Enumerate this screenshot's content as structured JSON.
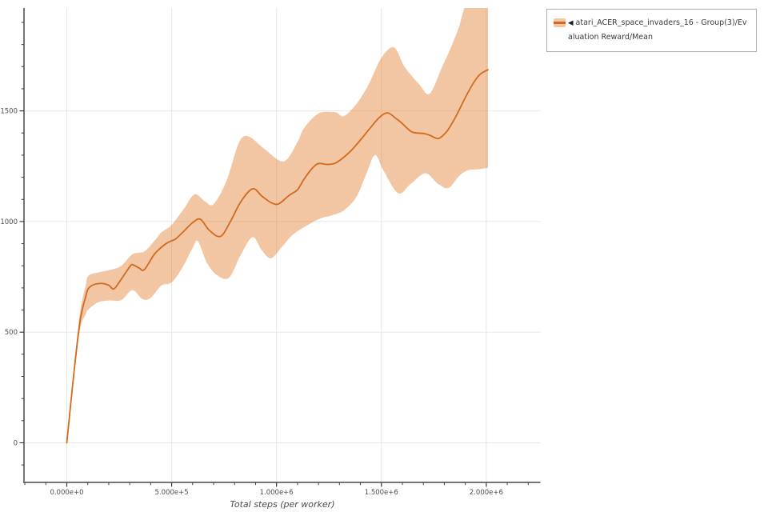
{
  "legend": {
    "collapse_icon": "◀",
    "series_label": "atari_ACER_space_invaders_16 - Group(3)/Evaluation Reward/Mean"
  },
  "chart_data": {
    "type": "line",
    "title": "",
    "xlabel": "Total steps (per worker)",
    "ylabel": "",
    "xlim": [
      -204000,
      2258000
    ],
    "ylim": [
      -179,
      1965
    ],
    "grid": true,
    "legend_position": "top-right",
    "x_ticks": [
      {
        "value": 0,
        "label": "0.000e+0"
      },
      {
        "value": 500000,
        "label": "5.000e+5"
      },
      {
        "value": 1000000,
        "label": "1.000e+6"
      },
      {
        "value": 1500000,
        "label": "1.500e+6"
      },
      {
        "value": 2000000,
        "label": "2.000e+6"
      }
    ],
    "y_ticks": [
      {
        "value": 0,
        "label": "0"
      },
      {
        "value": 500,
        "label": "500"
      },
      {
        "value": 1000,
        "label": "1000"
      },
      {
        "value": 1500,
        "label": "1500"
      }
    ],
    "x_minor_step": 100000,
    "y_minor_step": 100,
    "colors": {
      "line": "#d4691c",
      "band": "rgba(224,118,34,0.42)",
      "grid": "#e7e7e7",
      "spine": "#767676",
      "tick": "#3c3c3c",
      "tick_label": "#4d4d4d",
      "axis_title": "#4a4a4a"
    },
    "series": [
      {
        "name": "atari_ACER_space_invaders_16 - Group(3)/Evaluation Reward/Mean",
        "mean": [
          [
            0,
            0
          ],
          [
            15000,
            140
          ],
          [
            40000,
            370
          ],
          [
            65000,
            560
          ],
          [
            90000,
            660
          ],
          [
            103000,
            697
          ],
          [
            130000,
            715
          ],
          [
            170000,
            720
          ],
          [
            200000,
            712
          ],
          [
            225000,
            696
          ],
          [
            260000,
            740
          ],
          [
            300000,
            795
          ],
          [
            313000,
            805
          ],
          [
            345000,
            790
          ],
          [
            370000,
            783
          ],
          [
            420000,
            855
          ],
          [
            470000,
            898
          ],
          [
            505000,
            915
          ],
          [
            520000,
            922
          ],
          [
            560000,
            958
          ],
          [
            600000,
            995
          ],
          [
            637000,
            1010
          ],
          [
            680000,
            960
          ],
          [
            733000,
            933
          ],
          [
            780000,
            1000
          ],
          [
            830000,
            1090
          ],
          [
            886000,
            1148
          ],
          [
            930000,
            1115
          ],
          [
            975000,
            1085
          ],
          [
            1010000,
            1080
          ],
          [
            1060000,
            1118
          ],
          [
            1100000,
            1144
          ],
          [
            1130000,
            1190
          ],
          [
            1170000,
            1240
          ],
          [
            1200000,
            1262
          ],
          [
            1240000,
            1258
          ],
          [
            1280000,
            1264
          ],
          [
            1320000,
            1290
          ],
          [
            1360000,
            1325
          ],
          [
            1410000,
            1380
          ],
          [
            1440000,
            1415
          ],
          [
            1490000,
            1470
          ],
          [
            1530000,
            1491
          ],
          [
            1570000,
            1465
          ],
          [
            1590000,
            1451
          ],
          [
            1640000,
            1408
          ],
          [
            1670000,
            1400
          ],
          [
            1700000,
            1398
          ],
          [
            1730000,
            1390
          ],
          [
            1770000,
            1375
          ],
          [
            1800000,
            1395
          ],
          [
            1820000,
            1418
          ],
          [
            1860000,
            1484
          ],
          [
            1900000,
            1560
          ],
          [
            1940000,
            1628
          ],
          [
            1970000,
            1665
          ],
          [
            2008000,
            1686
          ]
        ],
        "band_lower": [
          [
            0,
            0
          ],
          [
            15000,
            132
          ],
          [
            40000,
            345
          ],
          [
            65000,
            520
          ],
          [
            90000,
            580
          ],
          [
            103000,
            603
          ],
          [
            150000,
            635
          ],
          [
            200000,
            643
          ],
          [
            260000,
            645
          ],
          [
            313000,
            690
          ],
          [
            360000,
            650
          ],
          [
            400000,
            655
          ],
          [
            450000,
            710
          ],
          [
            500000,
            725
          ],
          [
            550000,
            790
          ],
          [
            600000,
            880
          ],
          [
            625000,
            911
          ],
          [
            670000,
            810
          ],
          [
            720000,
            755
          ],
          [
            775000,
            748
          ],
          [
            830000,
            850
          ],
          [
            886000,
            929
          ],
          [
            930000,
            870
          ],
          [
            974000,
            834
          ],
          [
            1030000,
            890
          ],
          [
            1080000,
            942
          ],
          [
            1150000,
            985
          ],
          [
            1210000,
            1014
          ],
          [
            1270000,
            1030
          ],
          [
            1320000,
            1050
          ],
          [
            1380000,
            1110
          ],
          [
            1430000,
            1220
          ],
          [
            1470000,
            1300
          ],
          [
            1510000,
            1230
          ],
          [
            1580000,
            1128
          ],
          [
            1640000,
            1170
          ],
          [
            1710000,
            1218
          ],
          [
            1770000,
            1170
          ],
          [
            1820000,
            1152
          ],
          [
            1870000,
            1205
          ],
          [
            1910000,
            1231
          ],
          [
            1960000,
            1236
          ],
          [
            2008000,
            1242
          ]
        ],
        "band_upper": [
          [
            0,
            0
          ],
          [
            15000,
            150
          ],
          [
            40000,
            395
          ],
          [
            65000,
            600
          ],
          [
            90000,
            710
          ],
          [
            103000,
            755
          ],
          [
            150000,
            770
          ],
          [
            200000,
            780
          ],
          [
            260000,
            800
          ],
          [
            313000,
            852
          ],
          [
            370000,
            865
          ],
          [
            420000,
            915
          ],
          [
            450000,
            950
          ],
          [
            500000,
            985
          ],
          [
            560000,
            1060
          ],
          [
            610000,
            1123
          ],
          [
            660000,
            1090
          ],
          [
            700000,
            1079
          ],
          [
            760000,
            1180
          ],
          [
            810000,
            1330
          ],
          [
            840000,
            1383
          ],
          [
            880000,
            1378
          ],
          [
            940000,
            1330
          ],
          [
            1034000,
            1272
          ],
          [
            1100000,
            1360
          ],
          [
            1130000,
            1421
          ],
          [
            1200000,
            1488
          ],
          [
            1280000,
            1494
          ],
          [
            1320000,
            1476
          ],
          [
            1380000,
            1530
          ],
          [
            1440000,
            1621
          ],
          [
            1500000,
            1740
          ],
          [
            1560000,
            1787
          ],
          [
            1610000,
            1700
          ],
          [
            1680000,
            1620
          ],
          [
            1730000,
            1578
          ],
          [
            1790000,
            1700
          ],
          [
            1830000,
            1784
          ],
          [
            1870000,
            1880
          ],
          [
            1900000,
            1975
          ],
          [
            1950000,
            2040
          ],
          [
            2008000,
            2080
          ]
        ]
      }
    ]
  }
}
